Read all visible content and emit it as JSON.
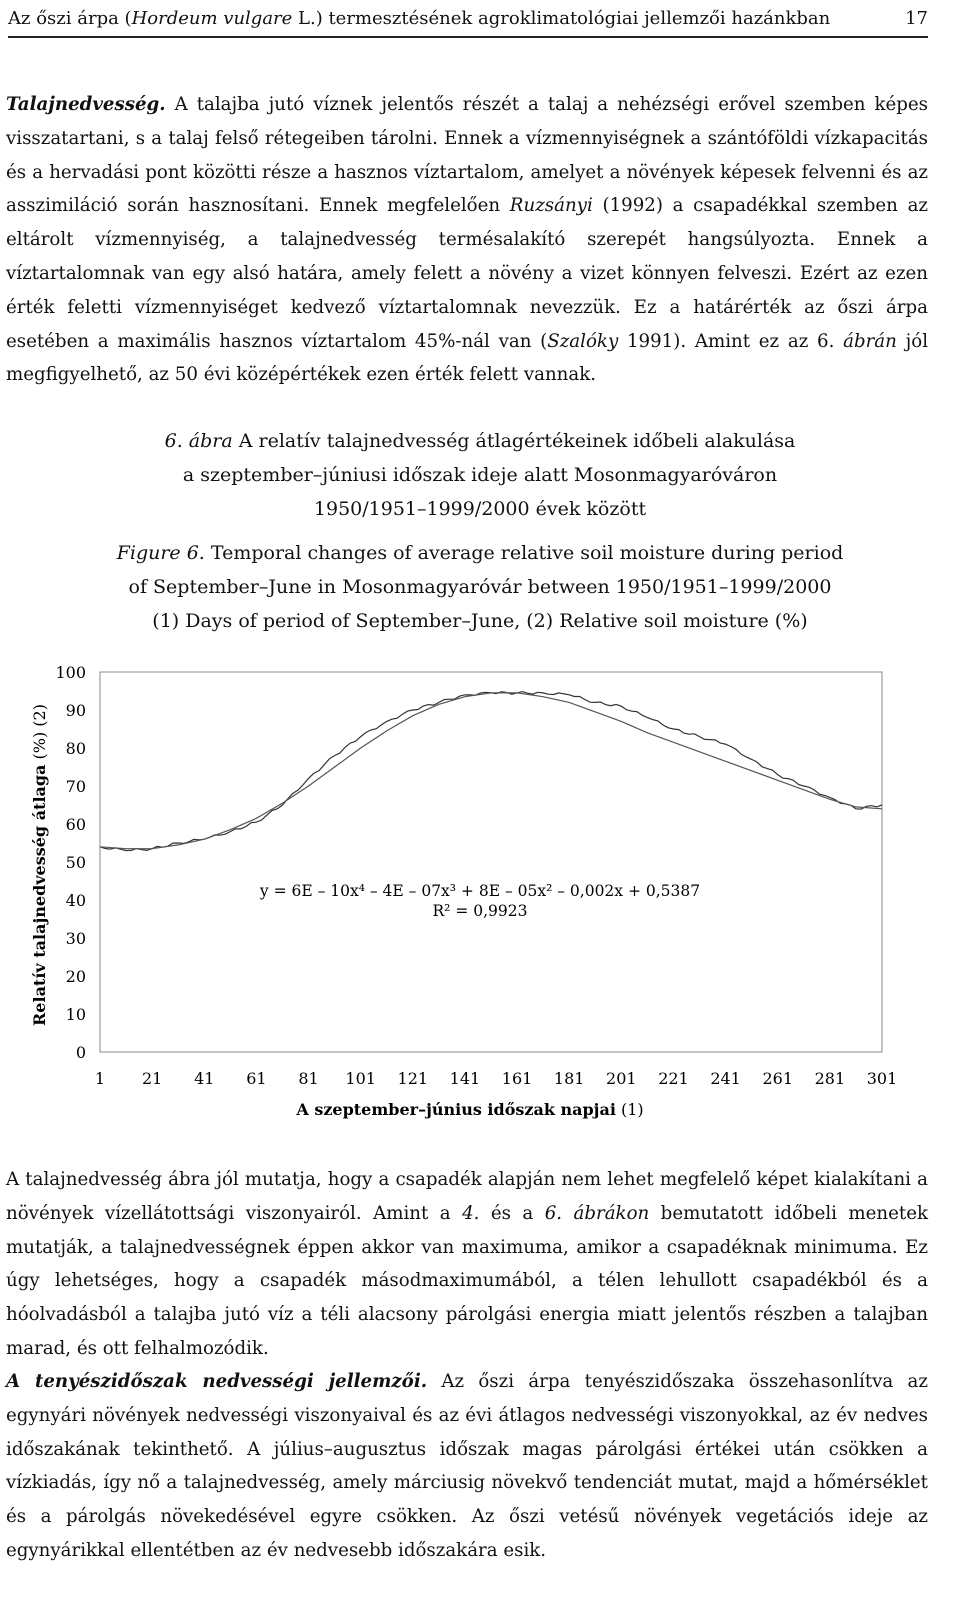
{
  "header": {
    "title_prefix": "Az őszi árpa (",
    "title_italic": "Hordeum vulgare",
    "title_suffix": " L.) termesztésének agroklimatológiai jellemzői hazánkban",
    "page_number": "17"
  },
  "para1": {
    "lead": "Talajnedvesség.",
    "text1": " A talajba jutó víznek jelentős részét a talaj a nehézségi erővel szemben képes visszatartani, s a talaj felső rétegeiben tárolni. Ennek a vízmennyiségnek a szántóföldi vízkapacitás és a hervadási pont közötti része a hasznos víztartalom, amelyet a növények képesek felvenni és az asszimiláció során hasznosítani. Ennek megfelelően ",
    "cite1": "Ruzsányi",
    "text2": " (1992) a csapadékkal szemben az eltárolt vízmennyiség, a talajnedvesség termésalakító szerepét hangsúlyozta. Ennek a víztartalomnak van egy alsó határa, amely felett a növény a vizet könnyen felveszi. Ezért az ezen érték feletti vízmennyiséget kedvező víztartalomnak nevezzük. Ez a határérték az őszi árpa esetében a maximális hasznos víztartalom 45%-nál van (",
    "cite2": "Szalóky",
    "text3": " 1991). Amint ez az 6. ",
    "ref": "ábrán",
    "text4": " jól megfigyelhető, az 50 évi középértékek ezen érték felett vannak."
  },
  "caption_hu": {
    "label": "6. ábra",
    "line1": " A relatív talajnedvesség átlagértékeinek időbeli alakulása",
    "line2": "a szeptember–júniusi időszak ideje alatt Mosonmagyaróváron",
    "line3": "1950/1951–1999/2000 évek között"
  },
  "caption_en": {
    "label": "Figure 6.",
    "line1": " Temporal changes of  average relative soil moisture during  period",
    "line2": "of September–June in Mosonmagyaróvár between 1950/1951–1999/2000",
    "line3": "(1) Days of  period of September–June, (2) Relative soil moisture (%)"
  },
  "chart_data": {
    "type": "line",
    "xlabel_bold": "A szeptember–június időszak napjai",
    "xlabel_suffix": " (1)",
    "ylabel_bold": "Relatív talajnedvesség átlaga",
    "ylabel_suffix": " (%) (2)",
    "x_ticks": [
      "1",
      "21",
      "41",
      "61",
      "81",
      "101",
      "121",
      "141",
      "161",
      "181",
      "201",
      "221",
      "241",
      "261",
      "281",
      "301"
    ],
    "y_ticks": [
      "0",
      "10",
      "20",
      "30",
      "40",
      "50",
      "60",
      "70",
      "80",
      "90",
      "100"
    ],
    "xlim": [
      1,
      301
    ],
    "ylim": [
      0,
      100
    ],
    "equation": "y = 6E – 10x⁴ – 4E – 07x³ + 8E – 05x² – 0,002x + 0,5387",
    "r_squared": "R² = 0,9923",
    "series": [
      {
        "role": "observed",
        "x": [
          1,
          11,
          21,
          31,
          41,
          51,
          61,
          71,
          81,
          91,
          101,
          111,
          121,
          131,
          141,
          151,
          161,
          171,
          181,
          191,
          201,
          211,
          221,
          231,
          241,
          251,
          261,
          271,
          281,
          291,
          301
        ],
        "y": [
          54,
          53,
          53.5,
          55,
          56,
          58,
          60.5,
          65,
          72,
          78,
          83,
          87,
          90,
          92,
          94,
          94.5,
          94.5,
          94.5,
          94,
          92,
          91,
          88,
          85,
          83,
          81,
          77,
          73,
          70,
          67,
          64,
          65
        ]
      },
      {
        "role": "trend",
        "x": [
          1,
          11,
          21,
          31,
          41,
          51,
          61,
          71,
          81,
          91,
          101,
          111,
          121,
          131,
          141,
          151,
          161,
          171,
          181,
          191,
          201,
          211,
          221,
          231,
          241,
          251,
          261,
          271,
          281,
          291,
          301
        ],
        "y": [
          54,
          53.5,
          53.5,
          54.5,
          56,
          58.5,
          61.5,
          65.5,
          70,
          75,
          80,
          84.5,
          88.5,
          91.5,
          93.5,
          94.5,
          94.5,
          93.5,
          92,
          89.5,
          87,
          84,
          81.5,
          79,
          76.5,
          74,
          71.5,
          69,
          66.5,
          64.5,
          64
        ]
      }
    ]
  },
  "para2": {
    "text1": "A talajnedvesség ábra jól mutatja, hogy a csapadék alapján nem lehet megfelelő képet kialakítani a növények vízellátottsági viszonyairól. Amint a ",
    "ref1": "4.",
    "text2": " és a ",
    "ref2": "6. ábrákon",
    "text3": " bemutatott időbeli menetek mutatják, a talajnedvességnek éppen akkor van maximuma, amikor a csapadéknak minimuma. Ez úgy lehetséges, hogy a csapadék másodmaximumából, a télen lehullott csapadékból és a hóolvadásból a talajba jutó víz a téli alacsony párolgási energia miatt jelentős részben a talajban marad, és ott felhalmozódik."
  },
  "para3": {
    "lead": "A tenyészidőszak nedvességi jellemzői.",
    "text": " Az őszi árpa tenyészidőszaka összehasonlítva az egynyári növények nedvességi viszonyaival és az évi átlagos nedvességi viszonyokkal, az év nedves időszakának tekinthető. A július–augusztus időszak magas párolgási értékei után csökken a vízkiadás, így nő a talajnedvesség, amely márciusig növekvő tendenciát mutat, majd a hőmérséklet és a párolgás növekedésével egyre csökken. Az őszi vetésű növények vegetációs ideje az egynyárikkal ellentétben az év nedvesebb időszakára esik."
  }
}
